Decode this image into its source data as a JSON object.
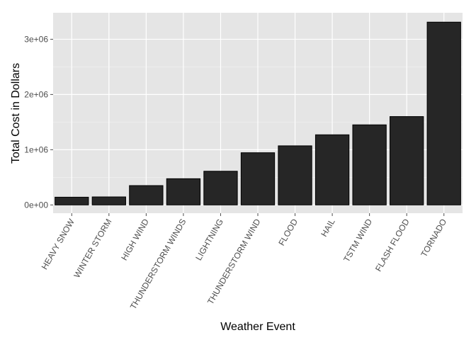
{
  "chart_data": {
    "type": "bar",
    "xlabel": "Weather Event",
    "ylabel": "Total Cost in Dollars",
    "categories": [
      "HEAVY SNOW",
      "WINTER STORM",
      "HIGH WIND",
      "THUNDERSTORM WINDS",
      "LIGHTNING",
      "THUNDERSTORM WIND",
      "FLOOD",
      "HAIL",
      "TSTM WIND",
      "FLASH FLOOD",
      "TORNADO"
    ],
    "values": [
      140000,
      145000,
      350000,
      475000,
      610000,
      945000,
      1070000,
      1270000,
      1450000,
      1600000,
      3310000
    ],
    "ylim": [
      -150000,
      3480000
    ],
    "yticks": [
      0,
      1000000,
      2000000,
      3000000
    ],
    "ytick_labels": [
      "0e+00",
      "1e+06",
      "2e+06",
      "3e+06"
    ],
    "grid": true,
    "colors": {
      "panel": "#e5e5e5",
      "grid_major": "#ffffff",
      "grid_minor": "#f2f2f2",
      "bar_fill": "#262626",
      "bar_stroke": "#000000"
    }
  }
}
